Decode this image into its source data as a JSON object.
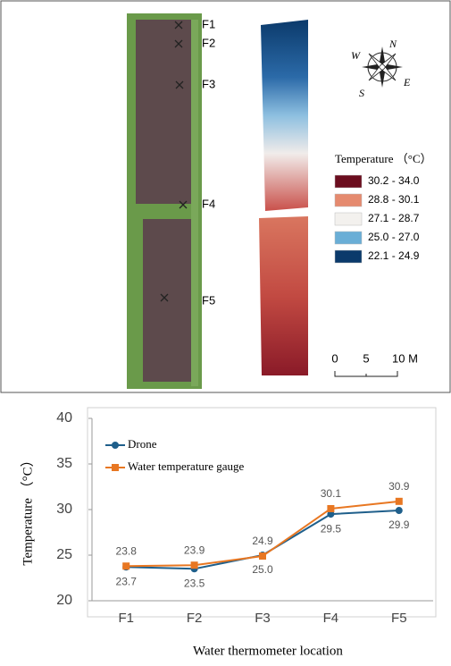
{
  "map": {
    "markers": [
      "F1",
      "F2",
      "F3",
      "F4",
      "F5"
    ],
    "legend_title": "Temperature （°C）",
    "legend": [
      {
        "label": "30.2 - 34.0",
        "color": "#6b0d1e"
      },
      {
        "label": "28.8 - 30.1",
        "color": "#e58a6f"
      },
      {
        "label": "27.1 - 28.7",
        "color": "#f3f1ee"
      },
      {
        "label": "25.0 - 27.0",
        "color": "#6aaed6"
      },
      {
        "label": "22.1 - 24.9",
        "color": "#0b3a6b"
      }
    ],
    "scale_labels": [
      "0",
      "5",
      "10 M"
    ],
    "compass": [
      "N",
      "E",
      "S",
      "W"
    ]
  },
  "chart_data": {
    "type": "line",
    "x_label": "Water thermometer location",
    "y_label": "Temperature （°C）",
    "categories": [
      "F1",
      "F2",
      "F3",
      "F4",
      "F5"
    ],
    "series": [
      {
        "name": "Drone",
        "color": "#1f5f8b",
        "marker": "circle",
        "values": [
          23.7,
          23.5,
          25.0,
          29.5,
          29.9
        ],
        "value_labels": [
          "23.7",
          "23.5",
          "25.0",
          "29.5",
          "29.9"
        ]
      },
      {
        "name": "Water temperature gauge",
        "color": "#e87722",
        "marker": "square",
        "values": [
          23.8,
          23.9,
          24.9,
          30.1,
          30.9
        ]
      }
    ],
    "ylim": [
      20,
      40
    ],
    "yticks": [
      20,
      25,
      30,
      35,
      40
    ]
  }
}
